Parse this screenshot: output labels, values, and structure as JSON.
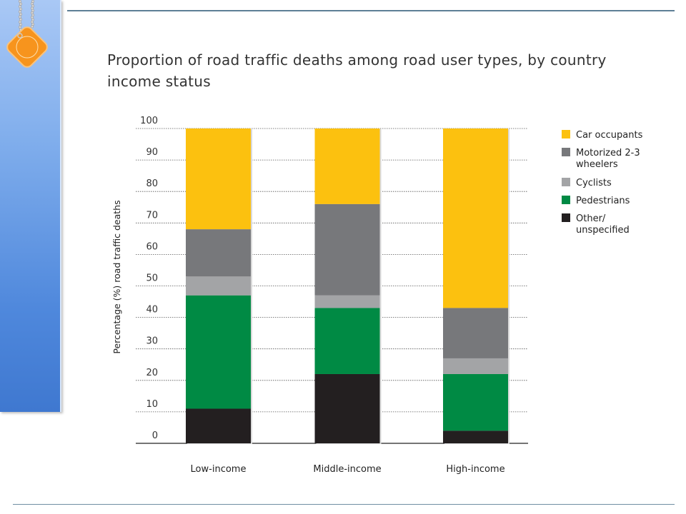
{
  "title_lines": [
    "Proportion of road traffic deaths among road user types, by country",
    "income status"
  ],
  "colors": {
    "panel": "#4f88dc",
    "rule": "#5d7f96",
    "tag": "#f7941d"
  },
  "icons": {
    "tag": "orange-diamond-tag-icon",
    "chain": "bead-chain-icon"
  },
  "chart_data": {
    "type": "bar",
    "stacked": true,
    "categories": [
      "Low-income",
      "Middle-income",
      "High-income"
    ],
    "series": [
      {
        "name": "Other/ unspecified",
        "label_lines": [
          "Other/",
          "unspecified"
        ],
        "color": "#231f20",
        "values": [
          11,
          22,
          4
        ]
      },
      {
        "name": "Pedestrians",
        "label_lines": [
          "Pedestrians"
        ],
        "color": "#008a44",
        "values": [
          36,
          21,
          18
        ]
      },
      {
        "name": "Cyclists",
        "label_lines": [
          "Cyclists"
        ],
        "color": "#a3a4a6",
        "values": [
          6,
          4,
          5
        ]
      },
      {
        "name": "Motorized 2-3 wheelers",
        "label_lines": [
          "Motorized 2-3",
          "wheelers"
        ],
        "color": "#77787b",
        "values": [
          15,
          29,
          16
        ]
      },
      {
        "name": "Car occupants",
        "label_lines": [
          "Car occupants"
        ],
        "color": "#fcc10f",
        "values": [
          32,
          24,
          57
        ]
      }
    ],
    "legend_order": [
      "Car occupants",
      "Motorized 2-3 wheelers",
      "Cyclists",
      "Pedestrians",
      "Other/ unspecified"
    ],
    "ylabel": "Percentage (%) road traffic deaths",
    "xlabel": "",
    "ylim": [
      0,
      100
    ],
    "yticks": [
      0,
      10,
      20,
      30,
      40,
      50,
      60,
      70,
      80,
      90,
      100
    ],
    "grid": true,
    "grid_style": "dotted",
    "legend_position": "right"
  }
}
